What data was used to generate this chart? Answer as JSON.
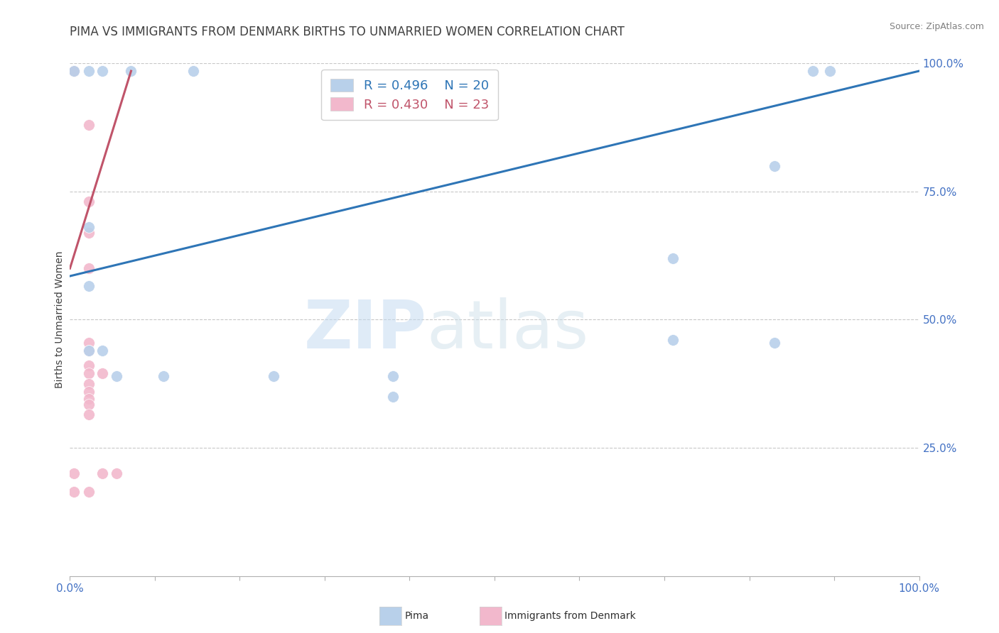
{
  "title": "PIMA VS IMMIGRANTS FROM DENMARK BIRTHS TO UNMARRIED WOMEN CORRELATION CHART",
  "source": "Source: ZipAtlas.com",
  "ylabel": "Births to Unmarried Women",
  "xlim": [
    0.0,
    1.0
  ],
  "ylim": [
    0.0,
    1.0
  ],
  "yticks": [
    0.25,
    0.5,
    0.75,
    1.0
  ],
  "ytick_labels": [
    "25.0%",
    "50.0%",
    "75.0%",
    "100.0%"
  ],
  "xtick_left": "0.0%",
  "xtick_right": "100.0%",
  "watermark_zip": "ZIP",
  "watermark_atlas": "atlas",
  "legend_blue_label": "R = 0.496    N = 20",
  "legend_pink_label": "R = 0.430    N = 23",
  "legend_label_pima": "Pima",
  "legend_label_denmark": "Immigrants from Denmark",
  "blue_scatter_color": "#b8d0ea",
  "pink_scatter_color": "#f2b8cc",
  "blue_line_color": "#2e75b6",
  "pink_line_color": "#c0546a",
  "blue_text_color": "#2e75b6",
  "pink_text_color": "#c0546a",
  "axis_tick_color": "#4472c4",
  "grid_color": "#c8c8c8",
  "title_color": "#404040",
  "source_color": "#808080",
  "background_color": "#ffffff",
  "pima_points": [
    [
      0.005,
      0.985
    ],
    [
      0.022,
      0.985
    ],
    [
      0.038,
      0.985
    ],
    [
      0.072,
      0.985
    ],
    [
      0.145,
      0.985
    ],
    [
      0.022,
      0.68
    ],
    [
      0.022,
      0.565
    ],
    [
      0.022,
      0.44
    ],
    [
      0.038,
      0.44
    ],
    [
      0.055,
      0.39
    ],
    [
      0.11,
      0.39
    ],
    [
      0.24,
      0.39
    ],
    [
      0.38,
      0.39
    ],
    [
      0.38,
      0.35
    ],
    [
      0.71,
      0.62
    ],
    [
      0.71,
      0.46
    ],
    [
      0.83,
      0.8
    ],
    [
      0.83,
      0.455
    ],
    [
      0.875,
      0.985
    ],
    [
      0.895,
      0.985
    ]
  ],
  "denmark_points": [
    [
      0.005,
      0.985
    ],
    [
      0.005,
      0.985
    ],
    [
      0.005,
      0.985
    ],
    [
      0.005,
      0.985
    ],
    [
      0.022,
      0.88
    ],
    [
      0.022,
      0.73
    ],
    [
      0.022,
      0.67
    ],
    [
      0.022,
      0.6
    ],
    [
      0.022,
      0.455
    ],
    [
      0.022,
      0.44
    ],
    [
      0.022,
      0.41
    ],
    [
      0.022,
      0.395
    ],
    [
      0.022,
      0.375
    ],
    [
      0.022,
      0.36
    ],
    [
      0.022,
      0.345
    ],
    [
      0.022,
      0.335
    ],
    [
      0.022,
      0.315
    ],
    [
      0.038,
      0.395
    ],
    [
      0.038,
      0.2
    ],
    [
      0.055,
      0.2
    ],
    [
      0.005,
      0.2
    ],
    [
      0.005,
      0.165
    ],
    [
      0.022,
      0.165
    ]
  ],
  "blue_line_x": [
    0.0,
    1.0
  ],
  "blue_line_y": [
    0.585,
    0.985
  ],
  "pink_line_x": [
    0.0,
    0.072
  ],
  "pink_line_y": [
    0.6,
    0.985
  ],
  "title_fontsize": 12,
  "source_fontsize": 9,
  "tick_fontsize": 11,
  "scatter_size": 130
}
